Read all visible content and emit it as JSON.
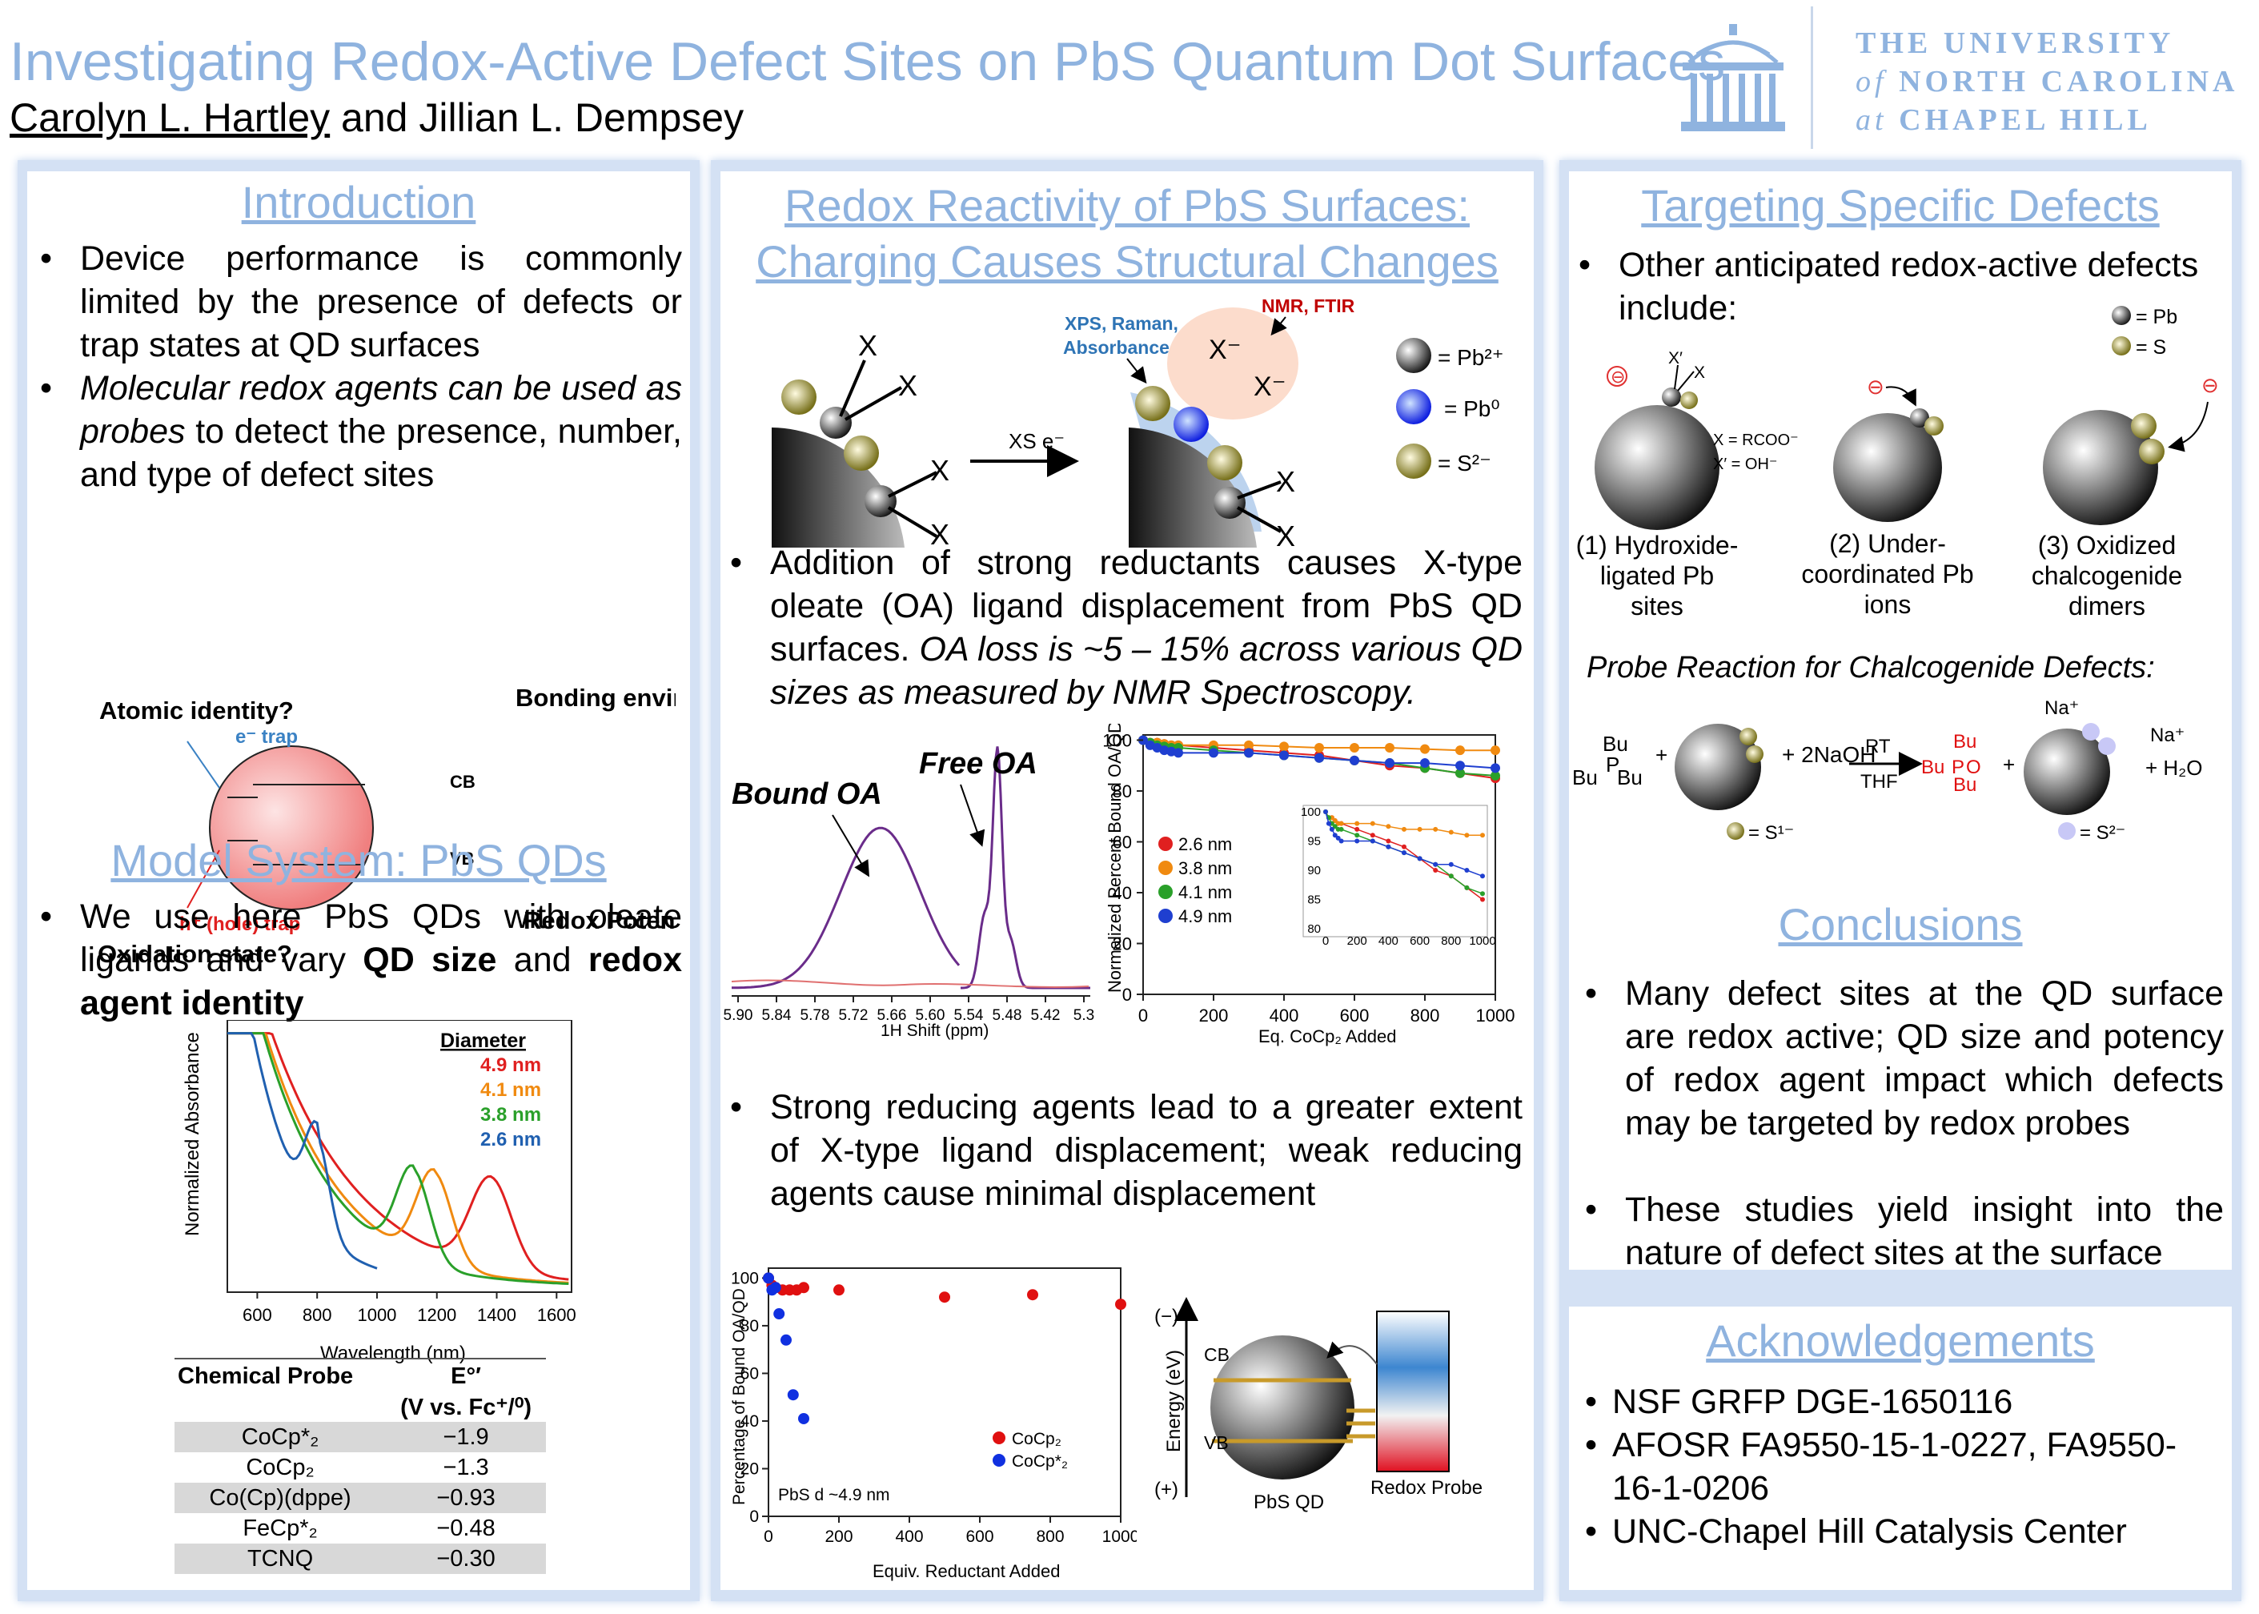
{
  "header": {
    "title": "Investigating Redox-Active Defect Sites on PbS Quantum Dot Surfaces",
    "author1": "Carolyn L. Hartley",
    "authors_rest": " and Jillian L. Dempsey",
    "unc_line1": "THE UNIVERSITY",
    "unc_line2_a": "of",
    "unc_line2_b": " NORTH CAROLINA",
    "unc_line3_a": "at",
    "unc_line3_b": " CHAPEL HILL"
  },
  "intro": {
    "heading": "Introduction",
    "bullet1": "Device performance is commonly limited by the presence of defects or trap states at QD surfaces",
    "bullet2_em": "Molecular redox agents can be used as probes",
    "bullet2_rest": " to detect the presence, number, and type of defect sites",
    "q_atomic": "Atomic identity?",
    "q_bonding": "Bonding environment?",
    "q_oxidation": "Oxidation state?",
    "q_redox": "Redox Potential?",
    "e_trap": "e⁻ trap",
    "h_trap": "h⁺ (hole) trap",
    "cb": "CB",
    "vb": "VB"
  },
  "model": {
    "heading": "Model System: PbS QDs",
    "bullet_a": "We use here PbS QDs with oleate ligands and vary ",
    "bullet_b": "QD size",
    "bullet_c": " and ",
    "bullet_d": "redox agent identity",
    "spectrum": {
      "ylabel": "Normalized Absorbance",
      "xlabel": "Wavelength (nm)",
      "legend_title": "Diameter",
      "xticks": [
        "600",
        "800",
        "1000",
        "1200",
        "1400",
        "1600"
      ],
      "series": [
        {
          "name": "4.9 nm",
          "color": "#e02020",
          "peak_nm": 1380
        },
        {
          "name": "4.1 nm",
          "color": "#f08a10",
          "peak_nm": 1190
        },
        {
          "name": "3.8 nm",
          "color": "#2aa02a",
          "peak_nm": 1120
        },
        {
          "name": "2.6 nm",
          "color": "#2060b0",
          "peak_nm": 800
        }
      ]
    },
    "table": {
      "h1": "Chemical Probe",
      "h2": "E°′",
      "h3": "(V vs. Fc⁺/⁰)",
      "rows": [
        {
          "probe": "CoCp*₂",
          "e": "−1.9"
        },
        {
          "probe": "CoCp₂",
          "e": "−1.3"
        },
        {
          "probe": "Co(Cp)(dppe)",
          "e": "−0.93"
        },
        {
          "probe": "FeCp*₂",
          "e": "−0.48"
        },
        {
          "probe": "TCNQ",
          "e": "−0.30"
        }
      ]
    }
  },
  "redox": {
    "heading1": "Redox Reactivity of PbS Surfaces:",
    "heading2": "Charging Causes Structural Changes",
    "xps": "XPS, Raman,",
    "absorbance": "Absorbance",
    "nmr": "NMR, FTIR",
    "xs": "XS e⁻",
    "x": "X",
    "xminus": "X⁻",
    "leg_pb2": "= Pb²⁺",
    "leg_pb0": "= Pb⁰",
    "leg_s": "= S²⁻",
    "bullet1_a": "Addition of strong reductants causes X-type oleate (OA) ligand displacement from PbS QD surfaces. ",
    "bullet1_b": "OA loss is ~5 – 15% across various QD sizes as measured by NMR Spectroscopy.",
    "nmr_plot": {
      "bound": "Bound OA",
      "free": "Free OA",
      "xlabel": "1H Shift (ppm)",
      "xticks": [
        "5.90",
        "5.84",
        "5.78",
        "5.72",
        "5.66",
        "5.60",
        "5.54",
        "5.48",
        "5.42",
        "5.3"
      ]
    },
    "titration": {
      "ylabel": "Normalized Percent Bound OA/QD",
      "xlabel": "Eq. CoCp₂ Added",
      "xticks": [
        "0",
        "200",
        "400",
        "600",
        "800",
        "1000"
      ],
      "yticks": [
        "0",
        "20",
        "40",
        "60",
        "80",
        "100"
      ],
      "inset_xticks": [
        "0",
        "200",
        "400",
        "600",
        "800",
        "1000"
      ],
      "inset_yticks": [
        "80",
        "85",
        "90",
        "95",
        "100"
      ],
      "series": [
        {
          "name": "2.6 nm",
          "color": "#e02020",
          "x": [
            0,
            20,
            40,
            60,
            80,
            100,
            200,
            300,
            400,
            500,
            600,
            700,
            800,
            900,
            1000
          ],
          "y": [
            100,
            99,
            99,
            98.5,
            98,
            98,
            97,
            96,
            95,
            94,
            92,
            90,
            89,
            87,
            85
          ]
        },
        {
          "name": "3.8 nm",
          "color": "#f08a10",
          "x": [
            0,
            20,
            40,
            60,
            80,
            100,
            200,
            300,
            400,
            500,
            600,
            700,
            800,
            900,
            1000
          ],
          "y": [
            100,
            99,
            99,
            98.5,
            98,
            98,
            98,
            98,
            97.5,
            97,
            97,
            97,
            96.5,
            96,
            96
          ]
        },
        {
          "name": "4.1 nm",
          "color": "#2aa02a",
          "x": [
            0,
            20,
            40,
            60,
            80,
            100,
            200,
            300,
            400,
            500,
            600,
            700,
            800,
            900,
            1000
          ],
          "y": [
            100,
            99,
            98,
            97.5,
            97,
            97,
            96,
            95,
            94,
            93,
            92,
            91,
            89,
            87,
            86
          ]
        },
        {
          "name": "4.9 nm",
          "color": "#1f3fd0",
          "x": [
            0,
            20,
            40,
            60,
            80,
            100,
            200,
            300,
            400,
            500,
            600,
            700,
            800,
            900,
            1000
          ],
          "y": [
            100,
            98,
            97,
            96,
            95.5,
            95,
            95,
            95,
            94,
            93,
            92,
            91,
            91,
            90,
            89
          ]
        }
      ]
    },
    "bullet2": "Strong reducing agents lead to a greater extent of X-type ligand displacement; weak reducing agents cause minimal displacement",
    "scatter": {
      "ylabel": "Percentage of Bound OA/QD",
      "xlabel": "Equiv. Reductant Added",
      "note": "PbS d ~4.9 nm",
      "xticks": [
        "0",
        "200",
        "400",
        "600",
        "800",
        "1000"
      ],
      "yticks": [
        "0",
        "20",
        "40",
        "60",
        "80",
        "100"
      ],
      "series": [
        {
          "name": "CoCp₂",
          "color": "#e01010",
          "x": [
            0,
            10,
            20,
            40,
            60,
            80,
            100,
            200,
            500,
            750,
            1000
          ],
          "y": [
            100,
            97,
            96,
            95,
            95,
            95,
            96,
            95,
            92,
            93,
            89
          ]
        },
        {
          "name": "CoCp*₂",
          "color": "#1030e0",
          "x": [
            0,
            10,
            20,
            30,
            50,
            70,
            100
          ],
          "y": [
            100,
            95,
            96,
            85,
            74,
            51,
            41
          ]
        }
      ]
    },
    "energy": {
      "neg": "(−)",
      "label": "Energy (eV)",
      "pos": "(+)",
      "cb": "CB",
      "vb": "VB",
      "qd": "PbS QD",
      "probe": "Redox Probe"
    }
  },
  "targeting": {
    "heading": "Targeting Specific Defects",
    "bullet": "Other anticipated redox-active defects include:",
    "leg_pb": "= Pb",
    "leg_s": "= S",
    "x_rcoo": "X = RCOO⁻",
    "x_oh": "X′ = OH⁻",
    "xprime": "X′",
    "x": "X",
    "d1": [
      "(1) Hydroxide-",
      "ligated Pb",
      "sites"
    ],
    "d2": [
      "(2) Under-",
      "coordinated Pb",
      "ions"
    ],
    "d3": [
      "(3) Oxidized",
      "chalcogenide",
      "dimers"
    ],
    "probe_title": "Probe Reaction for Chalcogenide Defects:",
    "bu": "Bu",
    "p": "P",
    "plus": "+",
    "naoh": "+ 2NaOH",
    "rt": "RT",
    "thf": "THF",
    "o": "O",
    "na": "Na⁺",
    "h2o": "+ H₂O",
    "s1": "= S¹⁻",
    "s2": "= S²⁻"
  },
  "conclusions": {
    "heading": "Conclusions",
    "bullet1": "Many defect sites at the QD surface are redox active; QD size and potency of redox agent impact which defects may be targeted by redox probes",
    "bullet2": "These studies yield insight into the nature of defect sites at the surface"
  },
  "ack": {
    "heading": "Acknowledgements",
    "items": [
      "NSF GRFP DGE-1650116",
      "AFOSR FA9550-15-1-0227, FA9550-16-1-0206",
      "UNC-Chapel Hill Catalysis Center"
    ]
  },
  "colors": {
    "accent": "#8fb3df",
    "panel_border": "#d4e1f4"
  }
}
